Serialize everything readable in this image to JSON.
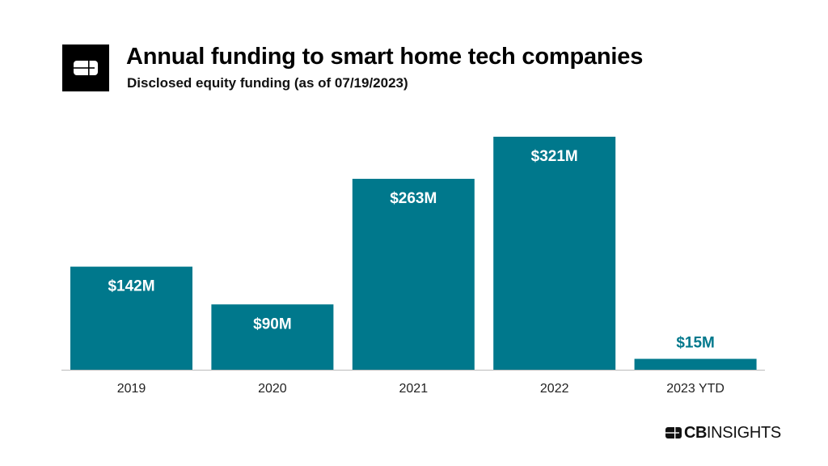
{
  "header": {
    "logo_icon": "cb-insights-logo-icon",
    "title": "Annual funding to smart home tech companies",
    "subtitle": "Disclosed equity funding (as of 07/19/2023)"
  },
  "brand": {
    "icon": "cb-insights-logo-icon",
    "name_bold": "CB",
    "name_regular": "INSIGHTS"
  },
  "colors": {
    "bar": "#00788C",
    "bar_label_inside": "#ffffff",
    "bar_label_outside": "#00788C",
    "axis": "#bbbbbb",
    "tick_label": "#222222"
  },
  "chart_data": {
    "type": "bar",
    "title": "Annual funding to smart home tech companies",
    "subtitle": "Disclosed equity funding (as of 07/19/2023)",
    "xlabel": "",
    "ylabel": "",
    "unit": "$M",
    "categories": [
      "2019",
      "2020",
      "2021",
      "2022",
      "2023 YTD"
    ],
    "values": [
      142,
      90,
      263,
      321,
      15
    ],
    "data_labels": [
      "$142M",
      "$90M",
      "$263M",
      "$321M",
      "$15M"
    ],
    "ylim": [
      0,
      321
    ],
    "grid": false,
    "legend": "none"
  }
}
